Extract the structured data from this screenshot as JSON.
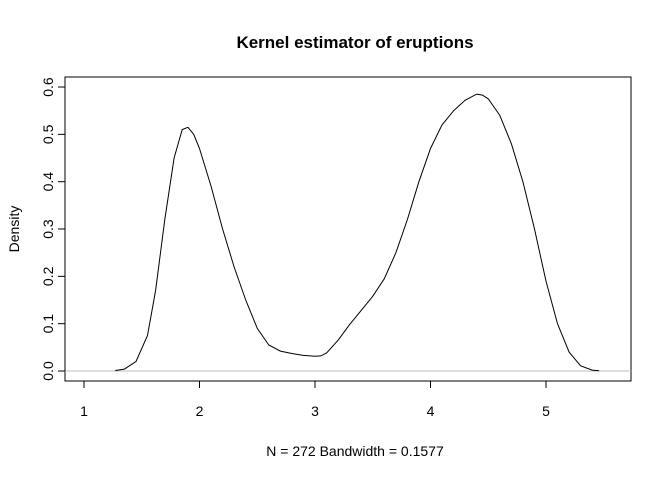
{
  "chart_data": {
    "type": "line",
    "title": "Kernel estimator of eruptions",
    "xlabel": "N = 272   Bandwidth = 0.1577",
    "ylabel": "Density",
    "xlim": [
      1,
      5.5
    ],
    "ylim": [
      0,
      0.6
    ],
    "x_ticks": [
      1,
      2,
      3,
      4,
      5
    ],
    "y_ticks": [
      0.0,
      0.1,
      0.2,
      0.3,
      0.4,
      0.5,
      0.6
    ],
    "x_tick_labels": [
      "1",
      "2",
      "3",
      "4",
      "5"
    ],
    "y_tick_labels": [
      "0.0",
      "0.1",
      "0.2",
      "0.3",
      "0.4",
      "0.5",
      "0.6"
    ],
    "grid": false,
    "baseline": 0,
    "colors": {
      "line": "#000000",
      "baseline": "#bebebe",
      "frame": "#000000"
    },
    "series": [
      {
        "x": [
          1.27,
          1.35,
          1.45,
          1.55,
          1.62,
          1.7,
          1.78,
          1.85,
          1.9,
          1.95,
          2.0,
          2.1,
          2.2,
          2.3,
          2.4,
          2.5,
          2.6,
          2.7,
          2.8,
          2.9,
          3.0,
          3.05,
          3.1,
          3.2,
          3.3,
          3.4,
          3.5,
          3.6,
          3.7,
          3.8,
          3.9,
          4.0,
          4.1,
          4.2,
          4.3,
          4.4,
          4.45,
          4.5,
          4.6,
          4.7,
          4.8,
          4.9,
          5.0,
          5.1,
          5.2,
          5.3,
          5.4,
          5.46
        ],
        "y": [
          0.001,
          0.004,
          0.02,
          0.075,
          0.17,
          0.32,
          0.45,
          0.51,
          0.515,
          0.5,
          0.47,
          0.39,
          0.3,
          0.22,
          0.15,
          0.09,
          0.055,
          0.042,
          0.037,
          0.033,
          0.031,
          0.032,
          0.038,
          0.065,
          0.098,
          0.128,
          0.158,
          0.195,
          0.25,
          0.32,
          0.4,
          0.47,
          0.52,
          0.55,
          0.572,
          0.585,
          0.583,
          0.575,
          0.54,
          0.48,
          0.4,
          0.3,
          0.19,
          0.1,
          0.04,
          0.011,
          0.002,
          0.0005
        ]
      }
    ]
  }
}
